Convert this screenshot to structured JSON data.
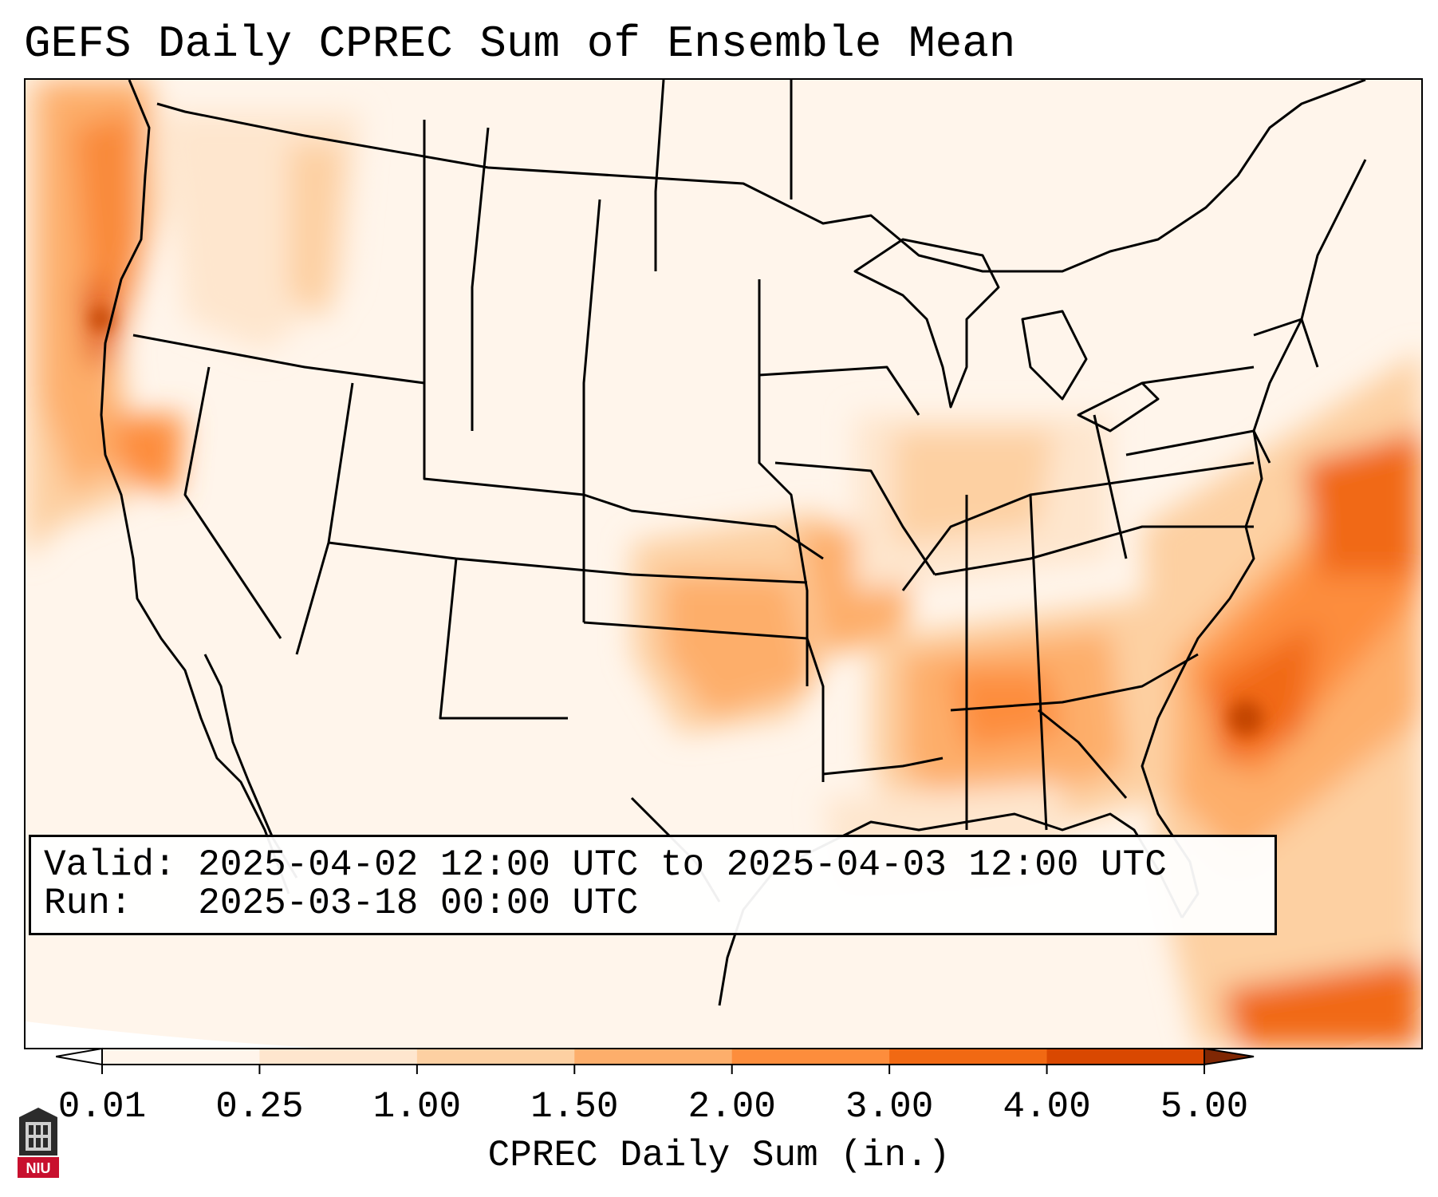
{
  "title": "GEFS Daily CPREC Sum of Ensemble Mean",
  "info": {
    "valid_label": "Valid:",
    "valid_value": "2025-04-02 12:00 UTC to 2025-04-03 12:00 UTC",
    "run_label": "Run:",
    "run_value": "2025-03-18 00:00 UTC"
  },
  "colorbar": {
    "label": "CPREC Daily Sum (in.)",
    "ticks": [
      "0.01",
      "0.25",
      "1.00",
      "1.50",
      "2.00",
      "3.00",
      "4.00",
      "5.00"
    ],
    "colors": [
      "#fff5eb",
      "#fee6ce",
      "#fdd0a2",
      "#fdae6b",
      "#fd8d3c",
      "#f16913",
      "#d94801",
      "#a63603"
    ],
    "under_color": "#ffffff",
    "over_color": "#7f2704",
    "extend": "both"
  },
  "logo": {
    "text": "NIU",
    "icon": "niu-building-logo-icon",
    "color": "#c8102e"
  }
}
